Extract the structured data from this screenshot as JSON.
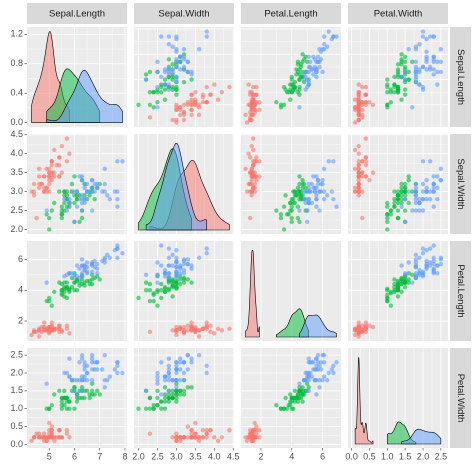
{
  "chart_data": {
    "type": "scatter_matrix",
    "variables": [
      "Sepal.Length",
      "Sepal.Width",
      "Petal.Length",
      "Petal.Width"
    ],
    "axes": [
      {
        "lim": [
          4.12,
          8.08
        ],
        "ticks": [
          5,
          6,
          7,
          8
        ]
      },
      {
        "lim": [
          1.88,
          4.52
        ],
        "ticks": [
          {
            "value": 2,
            "label": "2.0"
          },
          {
            "value": 2.5,
            "label": "2.5"
          },
          {
            "value": 3,
            "label": "3.0"
          },
          {
            "value": 3.5,
            "label": "3.5"
          },
          {
            "value": 4,
            "label": "4.0"
          },
          {
            "value": 4.5,
            "label": "4.5"
          }
        ]
      },
      {
        "lim": [
          0.705,
          7.195
        ],
        "ticks": [
          2,
          4,
          6
        ]
      },
      {
        "lim": [
          -0.1,
          2.7
        ],
        "ticks": [
          {
            "value": 0,
            "label": "0.0"
          },
          {
            "value": 0.5,
            "label": "0.5"
          },
          {
            "value": 1,
            "label": "1.0"
          },
          {
            "value": 1.5,
            "label": "1.5"
          },
          {
            "value": 2,
            "label": "2.0"
          },
          {
            "value": 2.5,
            "label": "2.5"
          }
        ]
      }
    ],
    "density_ylim": [
      -0.06,
      1.3
    ],
    "density_yticks": [
      {
        "value": 0,
        "label": "0.0"
      },
      {
        "value": 0.4,
        "label": "0.4"
      },
      {
        "value": 0.8,
        "label": "0.8"
      },
      {
        "value": 1.2,
        "label": "1.2"
      }
    ],
    "grid": true,
    "series": [
      {
        "color": "#F8766D",
        "values": [
          [
            5.1,
            4.9,
            4.7,
            4.6,
            5.0,
            5.4,
            4.6,
            5.0,
            4.4,
            4.9,
            5.4,
            4.8,
            4.8,
            4.3,
            5.8,
            5.7,
            5.4,
            5.1,
            5.7,
            5.1,
            5.4,
            5.1,
            4.6,
            5.1,
            4.8,
            5.0,
            5.0,
            5.2,
            5.2,
            4.7,
            4.8,
            5.4,
            5.2,
            5.5,
            4.9,
            5.0,
            5.5,
            4.9,
            4.4,
            5.1,
            5.0,
            4.5,
            4.4,
            5.0,
            5.1,
            4.8,
            5.1,
            4.6,
            5.3,
            5.0
          ],
          [
            3.5,
            3.0,
            3.2,
            3.1,
            3.6,
            3.9,
            3.4,
            3.4,
            2.9,
            3.1,
            3.7,
            3.4,
            3.0,
            3.0,
            4.0,
            4.4,
            3.9,
            3.5,
            3.8,
            3.8,
            3.4,
            3.7,
            3.6,
            3.3,
            3.4,
            3.0,
            3.4,
            3.5,
            3.4,
            3.2,
            3.1,
            3.4,
            4.1,
            4.2,
            3.1,
            3.2,
            3.5,
            3.6,
            3.0,
            3.4,
            3.5,
            2.3,
            3.2,
            3.5,
            3.8,
            3.0,
            3.8,
            3.2,
            3.7,
            3.3
          ],
          [
            1.4,
            1.4,
            1.3,
            1.5,
            1.4,
            1.7,
            1.4,
            1.5,
            1.4,
            1.5,
            1.5,
            1.6,
            1.4,
            1.1,
            1.2,
            1.5,
            1.3,
            1.4,
            1.7,
            1.5,
            1.7,
            1.5,
            1.0,
            1.7,
            1.9,
            1.6,
            1.6,
            1.5,
            1.4,
            1.6,
            1.6,
            1.5,
            1.5,
            1.4,
            1.5,
            1.2,
            1.3,
            1.4,
            1.3,
            1.5,
            1.3,
            1.3,
            1.3,
            1.6,
            1.9,
            1.4,
            1.6,
            1.4,
            1.5,
            1.4
          ],
          [
            0.2,
            0.2,
            0.2,
            0.2,
            0.2,
            0.4,
            0.3,
            0.2,
            0.2,
            0.1,
            0.2,
            0.2,
            0.1,
            0.1,
            0.2,
            0.4,
            0.4,
            0.3,
            0.3,
            0.3,
            0.2,
            0.4,
            0.2,
            0.5,
            0.2,
            0.2,
            0.4,
            0.2,
            0.2,
            0.2,
            0.2,
            0.4,
            0.1,
            0.2,
            0.2,
            0.2,
            0.2,
            0.1,
            0.2,
            0.2,
            0.3,
            0.3,
            0.2,
            0.6,
            0.4,
            0.3,
            0.2,
            0.2,
            0.2,
            0.2
          ]
        ]
      },
      {
        "color": "#00BA38",
        "values": [
          [
            7.0,
            6.4,
            6.9,
            5.5,
            6.5,
            5.7,
            6.3,
            4.9,
            6.6,
            5.2,
            5.0,
            5.9,
            6.0,
            6.1,
            5.6,
            6.7,
            5.6,
            5.8,
            6.2,
            5.6,
            5.9,
            6.1,
            6.3,
            6.1,
            6.4,
            6.6,
            6.8,
            6.7,
            6.0,
            5.7,
            5.5,
            5.5,
            5.8,
            6.0,
            5.4,
            6.0,
            6.7,
            6.3,
            5.6,
            5.5,
            5.5,
            6.1,
            5.8,
            5.0,
            5.6,
            5.7,
            5.7,
            6.2,
            5.1,
            5.7
          ],
          [
            3.2,
            3.2,
            3.1,
            2.3,
            2.8,
            2.8,
            3.3,
            2.4,
            2.9,
            2.7,
            2.0,
            3.0,
            2.2,
            2.9,
            2.9,
            3.1,
            3.0,
            2.7,
            2.2,
            2.5,
            3.2,
            2.8,
            2.5,
            2.8,
            2.9,
            3.0,
            2.8,
            3.0,
            2.9,
            2.6,
            2.4,
            2.4,
            2.7,
            2.7,
            3.0,
            3.4,
            3.1,
            2.3,
            3.0,
            2.5,
            2.6,
            3.0,
            2.6,
            2.3,
            2.7,
            3.0,
            2.9,
            2.9,
            2.5,
            2.8
          ],
          [
            4.7,
            4.5,
            4.9,
            4.0,
            4.6,
            4.5,
            4.7,
            3.3,
            4.6,
            3.9,
            3.5,
            4.2,
            4.0,
            4.7,
            3.6,
            4.4,
            4.5,
            4.1,
            4.5,
            3.9,
            4.8,
            4.0,
            4.9,
            4.7,
            4.3,
            4.4,
            4.8,
            5.0,
            4.5,
            3.5,
            3.8,
            3.7,
            3.9,
            5.1,
            4.5,
            4.5,
            4.7,
            4.4,
            4.1,
            4.0,
            4.4,
            4.6,
            4.0,
            3.3,
            4.2,
            4.2,
            4.2,
            4.3,
            3.0,
            4.1
          ],
          [
            1.4,
            1.5,
            1.5,
            1.3,
            1.5,
            1.3,
            1.6,
            1.0,
            1.3,
            1.4,
            1.0,
            1.5,
            1.0,
            1.4,
            1.3,
            1.4,
            1.5,
            1.0,
            1.5,
            1.1,
            1.8,
            1.3,
            1.5,
            1.2,
            1.3,
            1.4,
            1.4,
            1.7,
            1.5,
            1.0,
            1.1,
            1.0,
            1.2,
            1.6,
            1.5,
            1.6,
            1.5,
            1.3,
            1.3,
            1.3,
            1.2,
            1.4,
            1.2,
            1.0,
            1.3,
            1.2,
            1.3,
            1.3,
            1.1,
            1.3
          ]
        ]
      },
      {
        "color": "#619CFF",
        "values": [
          [
            6.3,
            5.8,
            7.1,
            6.3,
            6.5,
            7.6,
            4.9,
            7.3,
            6.7,
            7.2,
            6.5,
            6.4,
            6.8,
            5.7,
            5.8,
            6.4,
            6.5,
            7.7,
            7.7,
            6.0,
            6.9,
            5.6,
            7.7,
            6.3,
            6.7,
            7.2,
            6.2,
            6.1,
            6.4,
            7.2,
            7.4,
            7.9,
            6.4,
            6.3,
            6.1,
            7.7,
            6.3,
            6.4,
            6.0,
            6.9,
            6.7,
            6.9,
            5.8,
            6.8,
            6.7,
            6.7,
            6.3,
            6.5,
            6.2,
            5.9
          ],
          [
            3.3,
            2.7,
            3.0,
            2.9,
            3.0,
            3.0,
            2.5,
            2.9,
            2.5,
            3.6,
            3.2,
            2.7,
            3.0,
            2.5,
            2.8,
            3.2,
            3.0,
            3.8,
            2.6,
            2.2,
            3.2,
            2.8,
            2.8,
            2.7,
            3.3,
            3.2,
            2.8,
            3.0,
            2.8,
            3.0,
            2.8,
            3.8,
            2.8,
            2.8,
            2.6,
            3.0,
            3.4,
            3.1,
            3.0,
            3.1,
            3.1,
            3.1,
            2.7,
            3.2,
            3.3,
            3.0,
            2.5,
            3.0,
            3.4,
            3.0
          ],
          [
            6.0,
            5.1,
            5.9,
            5.6,
            5.8,
            6.6,
            4.5,
            6.3,
            5.8,
            6.1,
            5.1,
            5.3,
            5.5,
            5.0,
            5.1,
            5.3,
            5.5,
            6.7,
            6.9,
            5.0,
            5.7,
            4.9,
            6.7,
            4.9,
            5.7,
            6.0,
            4.8,
            4.9,
            5.6,
            5.8,
            6.1,
            6.4,
            5.6,
            5.1,
            5.6,
            6.1,
            5.6,
            5.5,
            4.8,
            5.4,
            5.6,
            5.1,
            5.1,
            5.9,
            5.7,
            5.2,
            5.0,
            5.2,
            5.4,
            5.1
          ],
          [
            2.5,
            1.9,
            2.1,
            1.8,
            2.2,
            2.1,
            1.7,
            1.8,
            1.8,
            2.5,
            2.0,
            1.9,
            2.1,
            2.0,
            2.4,
            2.3,
            1.8,
            2.2,
            2.3,
            1.5,
            2.3,
            2.0,
            2.0,
            1.8,
            2.1,
            1.8,
            1.8,
            1.8,
            2.1,
            1.6,
            1.9,
            2.0,
            2.2,
            1.5,
            1.4,
            2.3,
            2.4,
            1.8,
            1.8,
            2.1,
            2.4,
            2.3,
            1.9,
            2.3,
            2.5,
            2.3,
            1.9,
            2.0,
            2.3,
            1.8
          ]
        ]
      }
    ]
  }
}
